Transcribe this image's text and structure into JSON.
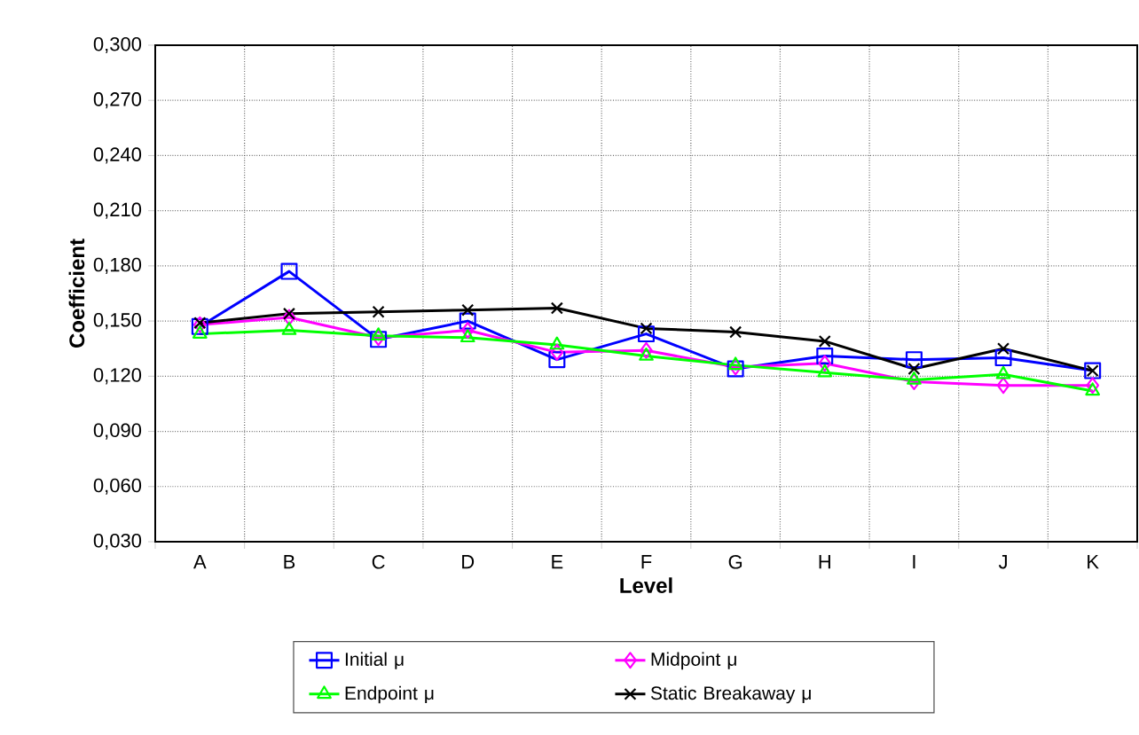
{
  "chart_data": {
    "type": "line",
    "xlabel": "Level",
    "ylabel": "Coefficient",
    "categories": [
      "A",
      "B",
      "C",
      "D",
      "E",
      "F",
      "G",
      "H",
      "I",
      "J",
      "K"
    ],
    "ylim": [
      0.03,
      0.3
    ],
    "yticks": [
      {
        "value": 0.03,
        "label": "0,030"
      },
      {
        "value": 0.06,
        "label": "0,060"
      },
      {
        "value": 0.09,
        "label": "0,090"
      },
      {
        "value": 0.12,
        "label": "0,120"
      },
      {
        "value": 0.15,
        "label": "0,150"
      },
      {
        "value": 0.18,
        "label": "0,180"
      },
      {
        "value": 0.21,
        "label": "0,210"
      },
      {
        "value": 0.24,
        "label": "0,240"
      },
      {
        "value": 0.27,
        "label": "0,270"
      },
      {
        "value": 0.3,
        "label": "0,300"
      }
    ],
    "grid": true,
    "legend": "bottom",
    "line_style": "solid",
    "series": [
      {
        "name": "Initial μ",
        "color": "#0000ff",
        "marker": "square",
        "values": [
          0.147,
          0.177,
          0.14,
          0.15,
          0.129,
          0.143,
          0.124,
          0.131,
          0.129,
          0.13,
          0.123
        ]
      },
      {
        "name": "Midpoint μ",
        "color": "#ff00ff",
        "marker": "diamond",
        "values": [
          0.148,
          0.152,
          0.141,
          0.145,
          0.133,
          0.134,
          0.125,
          0.127,
          0.117,
          0.115,
          0.115
        ]
      },
      {
        "name": "Endpoint μ",
        "color": "#00ff00",
        "marker": "triangle",
        "values": [
          0.143,
          0.145,
          0.142,
          0.141,
          0.137,
          0.131,
          0.126,
          0.122,
          0.118,
          0.121,
          0.112
        ]
      },
      {
        "name": "Static Breakaway μ",
        "color": "#000000",
        "marker": "cross",
        "values": [
          0.149,
          0.154,
          0.155,
          0.156,
          0.157,
          0.146,
          0.144,
          0.139,
          0.124,
          0.135,
          0.123
        ]
      }
    ]
  }
}
